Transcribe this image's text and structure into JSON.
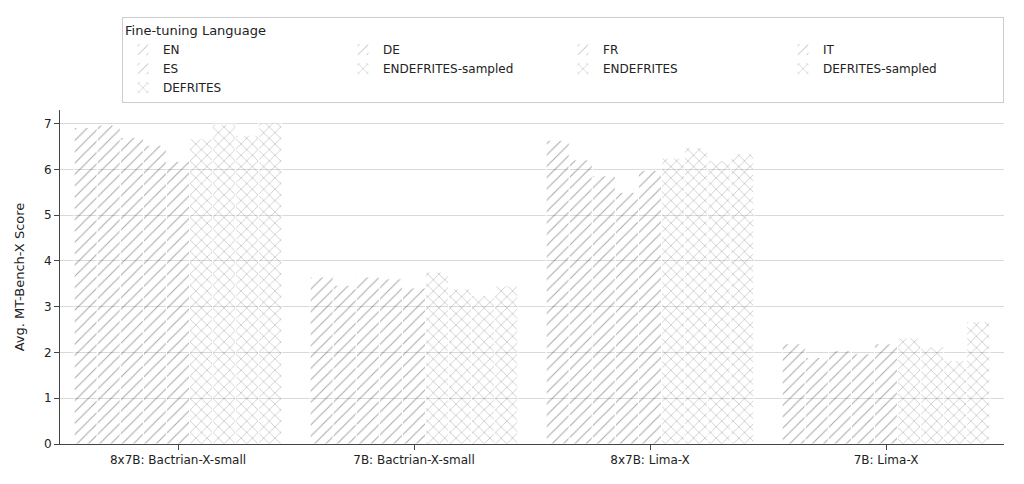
{
  "chart_data": {
    "type": "bar",
    "y_label": "Avg. MT-Bench-X Score",
    "legend_title": "Fine-tuning Language",
    "legend": "top right",
    "grid": true,
    "ylim": [
      0,
      7.3
    ],
    "yticks": [
      0,
      1,
      2,
      3,
      4,
      5,
      6,
      7
    ],
    "categories": [
      "8x7B: Bactrian-X-small",
      "7B: Bactrian-X-small",
      "8x7B: Lima-X",
      "7B: Lima-X"
    ],
    "series": [
      {
        "name": "EN",
        "color": "#dd80d8",
        "marker": "hatch",
        "values": [
          6.92,
          3.65,
          6.64,
          2.19
        ]
      },
      {
        "name": "DE",
        "color": "#b2312e",
        "marker": "hatch",
        "values": [
          6.97,
          3.47,
          6.21,
          1.89
        ]
      },
      {
        "name": "FR",
        "color": "#e0601f",
        "marker": "hatch",
        "values": [
          6.7,
          3.65,
          5.86,
          2.04
        ]
      },
      {
        "name": "IT",
        "color": "#dea21f",
        "marker": "hatch",
        "values": [
          6.53,
          3.61,
          5.5,
          1.97
        ]
      },
      {
        "name": "ES",
        "color": "#3a9a2f",
        "marker": "hatch",
        "values": [
          6.18,
          3.41,
          5.98,
          2.19
        ]
      },
      {
        "name": "ENDEFRITES-sampled",
        "color": "#6e6e6e",
        "marker": "crosshatch",
        "values": [
          6.67,
          3.76,
          6.25,
          2.32
        ]
      },
      {
        "name": "ENDEFRITES",
        "color": "#262626",
        "marker": "crosshatch",
        "values": [
          6.99,
          3.39,
          6.48,
          2.12
        ]
      },
      {
        "name": "DEFRITES-sampled",
        "color": "#4fd8d8",
        "marker": "crosshatch",
        "values": [
          6.75,
          3.24,
          6.19,
          1.83
        ]
      },
      {
        "name": "DEFRITES",
        "color": "#3333cc",
        "marker": "crosshatch",
        "values": [
          7.02,
          3.46,
          6.34,
          2.68
        ]
      }
    ]
  }
}
